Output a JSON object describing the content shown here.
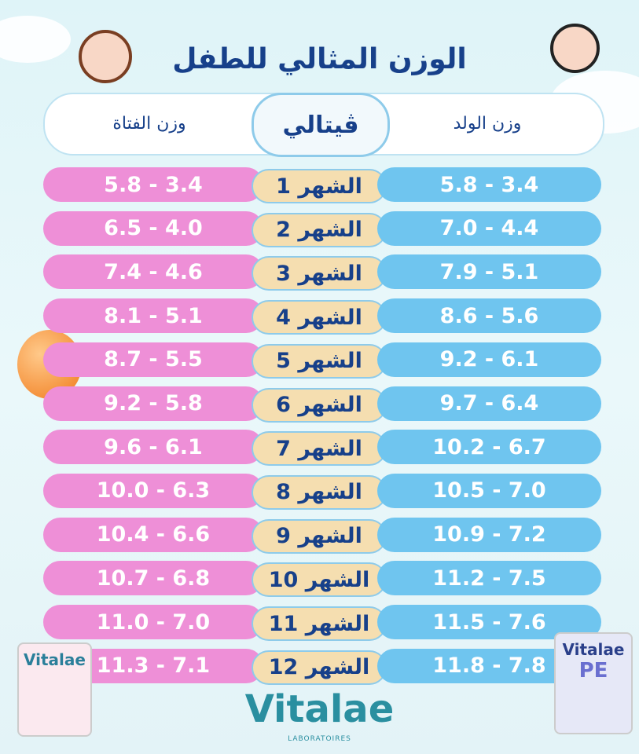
{
  "title": "الوزن المثالي للطفل",
  "header": {
    "girl": "وزن الفتاة",
    "brand": "ڤيتالي",
    "boy": "وزن الولد"
  },
  "rows": [
    {
      "month": "الشهر 1",
      "girl": "5.8 - 3.4",
      "boy": "5.8 - 3.4"
    },
    {
      "month": "الشهر 2",
      "girl": "6.5 - 4.0",
      "boy": "7.0 - 4.4"
    },
    {
      "month": "الشهر 3",
      "girl": "7.4 - 4.6",
      "boy": "7.9 - 5.1"
    },
    {
      "month": "الشهر 4",
      "girl": "8.1 - 5.1",
      "boy": "8.6 - 5.6"
    },
    {
      "month": "الشهر 5",
      "girl": "8.7 - 5.5",
      "boy": "9.2 - 6.1"
    },
    {
      "month": "الشهر 6",
      "girl": "9.2 - 5.8",
      "boy": "9.7 - 6.4"
    },
    {
      "month": "الشهر 7",
      "girl": "9.6 - 6.1",
      "boy": "10.2 - 6.7"
    },
    {
      "month": "الشهر 8",
      "girl": "10.0 - 6.3",
      "boy": "10.5 - 7.0"
    },
    {
      "month": "الشهر 9",
      "girl": "10.4 - 6.6",
      "boy": "10.9 - 7.2"
    },
    {
      "month": "الشهر 10",
      "girl": "10.7 - 6.8",
      "boy": "11.2 - 7.5"
    },
    {
      "month": "الشهر 11",
      "girl": "11.0 - 7.0",
      "boy": "11.5 - 7.6"
    },
    {
      "month": "الشهر 12",
      "girl": "11.3 - 7.1",
      "boy": "11.8 - 7.8"
    }
  ],
  "logo": {
    "name": "Vitalae",
    "sub": "LABORATOIRES"
  },
  "cans": [
    {
      "brand": "Vitalae"
    },
    {
      "brand": "Vitalae",
      "line": "PE"
    }
  ]
}
